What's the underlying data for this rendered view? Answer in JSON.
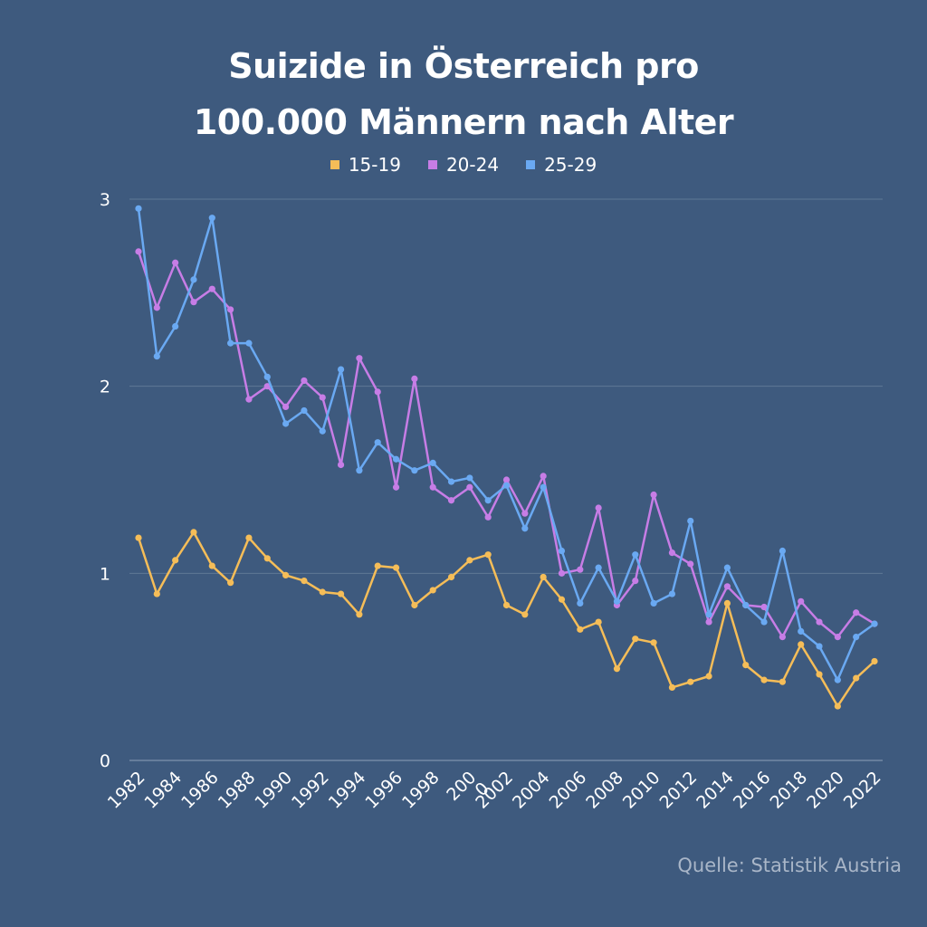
{
  "title_line1": "Suizide in Österreich pro",
  "title_line2": "100.000 Männern nach Alter",
  "source": "Quelle: Statistik Austria",
  "chart_data": {
    "type": "line",
    "title": "Suizide in Österreich pro 100.000 Männern nach Alter",
    "xlabel": "",
    "ylabel": "",
    "ylim": [
      0,
      3
    ],
    "yticks": [
      "0",
      "1",
      "2",
      "3"
    ],
    "grid": true,
    "legend_position": "top-center",
    "x": [
      1982,
      1983,
      1984,
      1985,
      1986,
      1987,
      1988,
      1989,
      1990,
      1991,
      1992,
      1993,
      1994,
      1995,
      1996,
      1997,
      1998,
      1999,
      2000,
      2001,
      2002,
      2003,
      2004,
      2005,
      2006,
      2007,
      2008,
      2009,
      2010,
      2011,
      2012,
      2013,
      2014,
      2015,
      2016,
      2017,
      2018,
      2019,
      2020,
      2021,
      2022
    ],
    "xtick_labels": [
      "1982",
      "1984",
      "1986",
      "1988",
      "1990",
      "1992",
      "1994",
      "1996",
      "1998",
      "200",
      "2002",
      "2004",
      "2006",
      "2008",
      "2010",
      "2012",
      "2014",
      "2016",
      "2018",
      "2020",
      "2022"
    ],
    "xtick_overlap_glyph": "0",
    "series": [
      {
        "name": "15-19",
        "color": "#f5bd58",
        "values": [
          1.19,
          0.89,
          1.07,
          1.22,
          1.04,
          0.95,
          1.19,
          1.08,
          0.99,
          0.96,
          0.9,
          0.89,
          0.78,
          1.04,
          1.03,
          0.83,
          0.91,
          0.98,
          1.07,
          1.1,
          0.83,
          0.78,
          0.98,
          0.86,
          0.7,
          0.74,
          0.49,
          0.65,
          0.63,
          0.39,
          0.42,
          0.45,
          0.84,
          0.51,
          0.43,
          0.42,
          0.62,
          0.46,
          0.29,
          0.44,
          0.53
        ]
      },
      {
        "name": "20-24",
        "color": "#c77de6",
        "values": [
          2.72,
          2.42,
          2.66,
          2.45,
          2.52,
          2.41,
          1.93,
          2.0,
          1.89,
          2.03,
          1.94,
          1.58,
          2.15,
          1.97,
          1.46,
          2.04,
          1.46,
          1.39,
          1.46,
          1.3,
          1.5,
          1.32,
          1.52,
          1.0,
          1.02,
          1.35,
          0.83,
          0.96,
          1.42,
          1.11,
          1.05,
          0.74,
          0.93,
          0.83,
          0.82,
          0.66,
          0.85,
          0.74,
          0.66,
          0.79,
          0.73
        ]
      },
      {
        "name": "25-29",
        "color": "#6aa9f2",
        "values": [
          2.95,
          2.16,
          2.32,
          2.57,
          2.9,
          2.23,
          2.23,
          2.05,
          1.8,
          1.87,
          1.76,
          2.09,
          1.55,
          1.7,
          1.61,
          1.55,
          1.59,
          1.49,
          1.51,
          1.39,
          1.47,
          1.24,
          1.46,
          1.12,
          0.84,
          1.03,
          0.85,
          1.1,
          0.84,
          0.89,
          1.28,
          0.78,
          1.03,
          0.83,
          0.74,
          1.12,
          0.69,
          0.61,
          0.43,
          0.66,
          0.73
        ]
      }
    ]
  }
}
